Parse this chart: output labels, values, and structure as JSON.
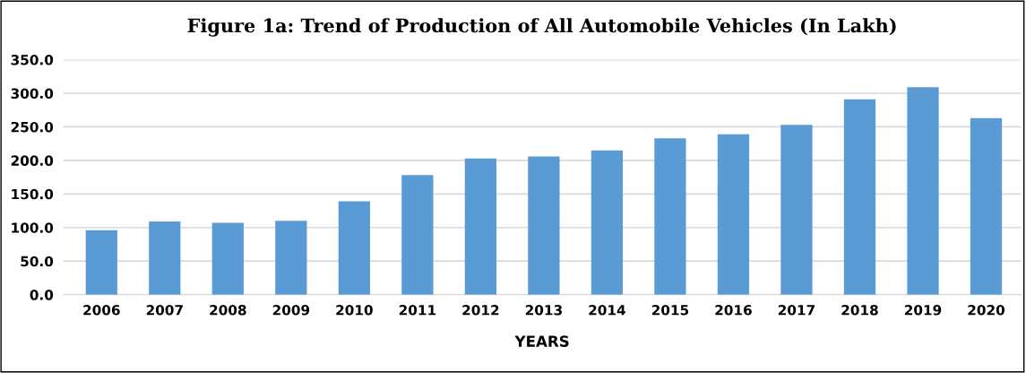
{
  "chart_data": {
    "type": "bar",
    "title": "Figure 1a: Trend of Production of All Automobile Vehicles (In Lakh)",
    "xlabel": "YEARS",
    "categories": [
      "2006",
      "2007",
      "2008",
      "2009",
      "2010",
      "2011",
      "2012",
      "2013",
      "2014",
      "2015",
      "2016",
      "2017",
      "2018",
      "2019",
      "2020"
    ],
    "values": [
      96,
      109,
      107,
      110,
      139,
      178,
      203,
      206,
      215,
      233,
      239,
      253,
      291,
      309,
      263
    ],
    "color": "#5b9bd5",
    "ylim": [
      0,
      350
    ],
    "yticks": [
      {
        "value": 0,
        "label": "0.0"
      },
      {
        "value": 50,
        "label": "50.0"
      },
      {
        "value": 100,
        "label": "100.0"
      },
      {
        "value": 150,
        "label": "150.0"
      },
      {
        "value": 200,
        "label": "200.0"
      },
      {
        "value": 250,
        "label": "250.0"
      },
      {
        "value": 300,
        "label": "300.0"
      },
      {
        "value": 350,
        "label": "350.0"
      }
    ],
    "grid": "y",
    "legend": false
  }
}
